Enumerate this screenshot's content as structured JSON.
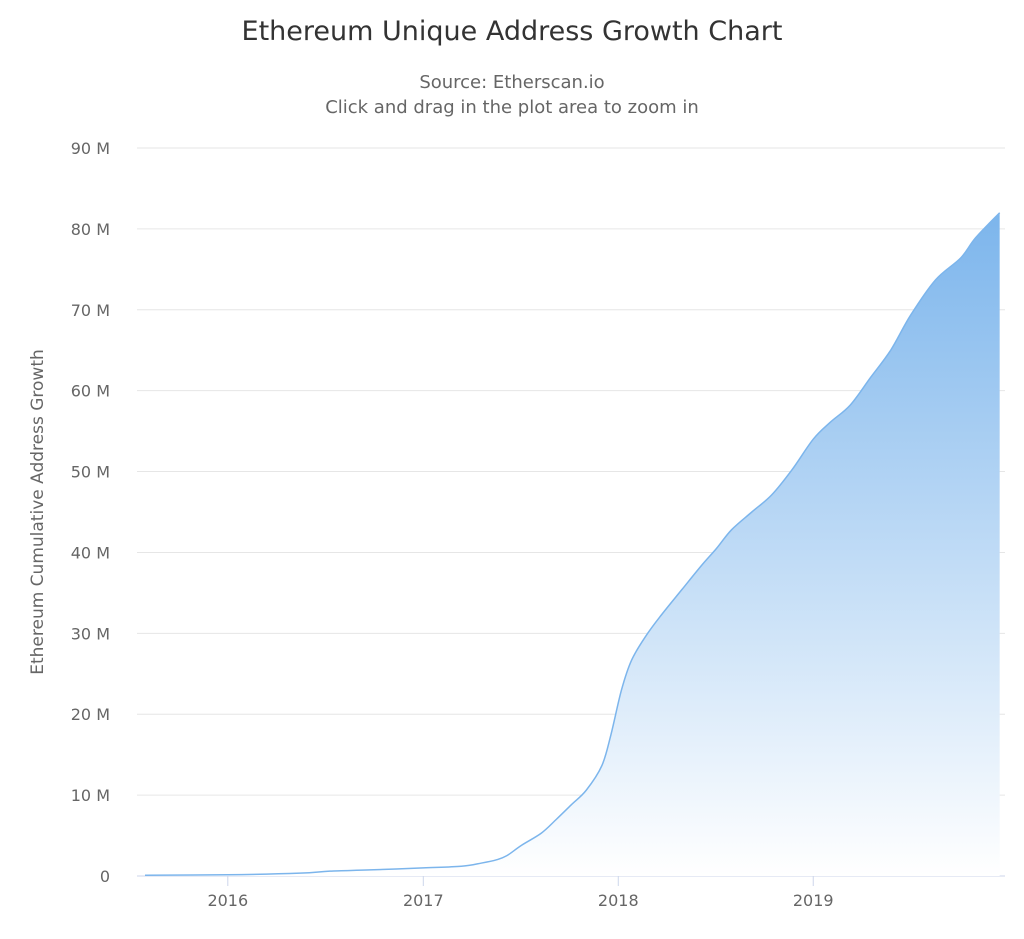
{
  "chart_data": {
    "type": "area",
    "title": "Ethereum Unique Address Growth Chart",
    "subtitle": [
      "Source: Etherscan.io",
      "Click and drag in the plot area to zoom in"
    ],
    "xlabel": "",
    "ylabel": "Ethereum Cumulative Address Growth",
    "xlim": [
      "2015-07-15",
      "2019-12-26"
    ],
    "ylim": [
      0,
      90000000
    ],
    "y_ticks": [
      0,
      10000000,
      20000000,
      30000000,
      40000000,
      50000000,
      60000000,
      70000000,
      80000000,
      90000000
    ],
    "y_tick_labels": [
      "0",
      "10 M",
      "20 M",
      "30 M",
      "40 M",
      "50 M",
      "60 M",
      "70 M",
      "80 M",
      "90 M"
    ],
    "x_ticks": [
      "2016-01-01",
      "2017-01-01",
      "2018-01-01",
      "2019-01-01"
    ],
    "x_tick_labels": [
      "2016",
      "2017",
      "2018",
      "2019"
    ],
    "grid": "horizontal",
    "legend": "none",
    "colors": {
      "line": "#7cb5ec",
      "fill_top": "#7cb5ec",
      "fill_bottom": "#ffffff",
      "grid": "#e6e6e6",
      "axis": "#ccd6eb"
    },
    "series": [
      {
        "x": [
          "2015-07-30",
          "2016-01-01",
          "2016-05-15",
          "2016-07-10",
          "2016-09-23",
          "2017-01-01",
          "2017-03-13",
          "2017-04-20",
          "2017-05-18",
          "2017-06-06",
          "2017-07-04",
          "2017-08-10",
          "2017-09-07",
          "2017-10-05",
          "2017-11-02",
          "2017-12-01",
          "2017-12-18",
          "2018-01-07",
          "2018-01-26",
          "2018-02-23",
          "2018-03-23",
          "2018-04-30",
          "2018-06-06",
          "2018-07-04",
          "2018-08-01",
          "2018-09-08",
          "2018-10-15",
          "2018-11-22",
          "2019-01-01",
          "2019-02-02",
          "2019-03-11",
          "2019-04-18",
          "2019-05-26",
          "2019-07-02",
          "2019-08-18",
          "2019-10-04",
          "2019-11-01",
          "2019-12-16"
        ],
        "y": [
          100000,
          150000,
          350000,
          600000,
          750000,
          1000000,
          1200000,
          1600000,
          2000000,
          2500000,
          3800000,
          5300000,
          7000000,
          8800000,
          10600000,
          13600000,
          17400000,
          23000000,
          26700000,
          29800000,
          32300000,
          35400000,
          38400000,
          40500000,
          42800000,
          45000000,
          47100000,
          50200000,
          54000000,
          56100000,
          58200000,
          61600000,
          65000000,
          69300000,
          73700000,
          76400000,
          78900000,
          82000000
        ]
      }
    ]
  }
}
